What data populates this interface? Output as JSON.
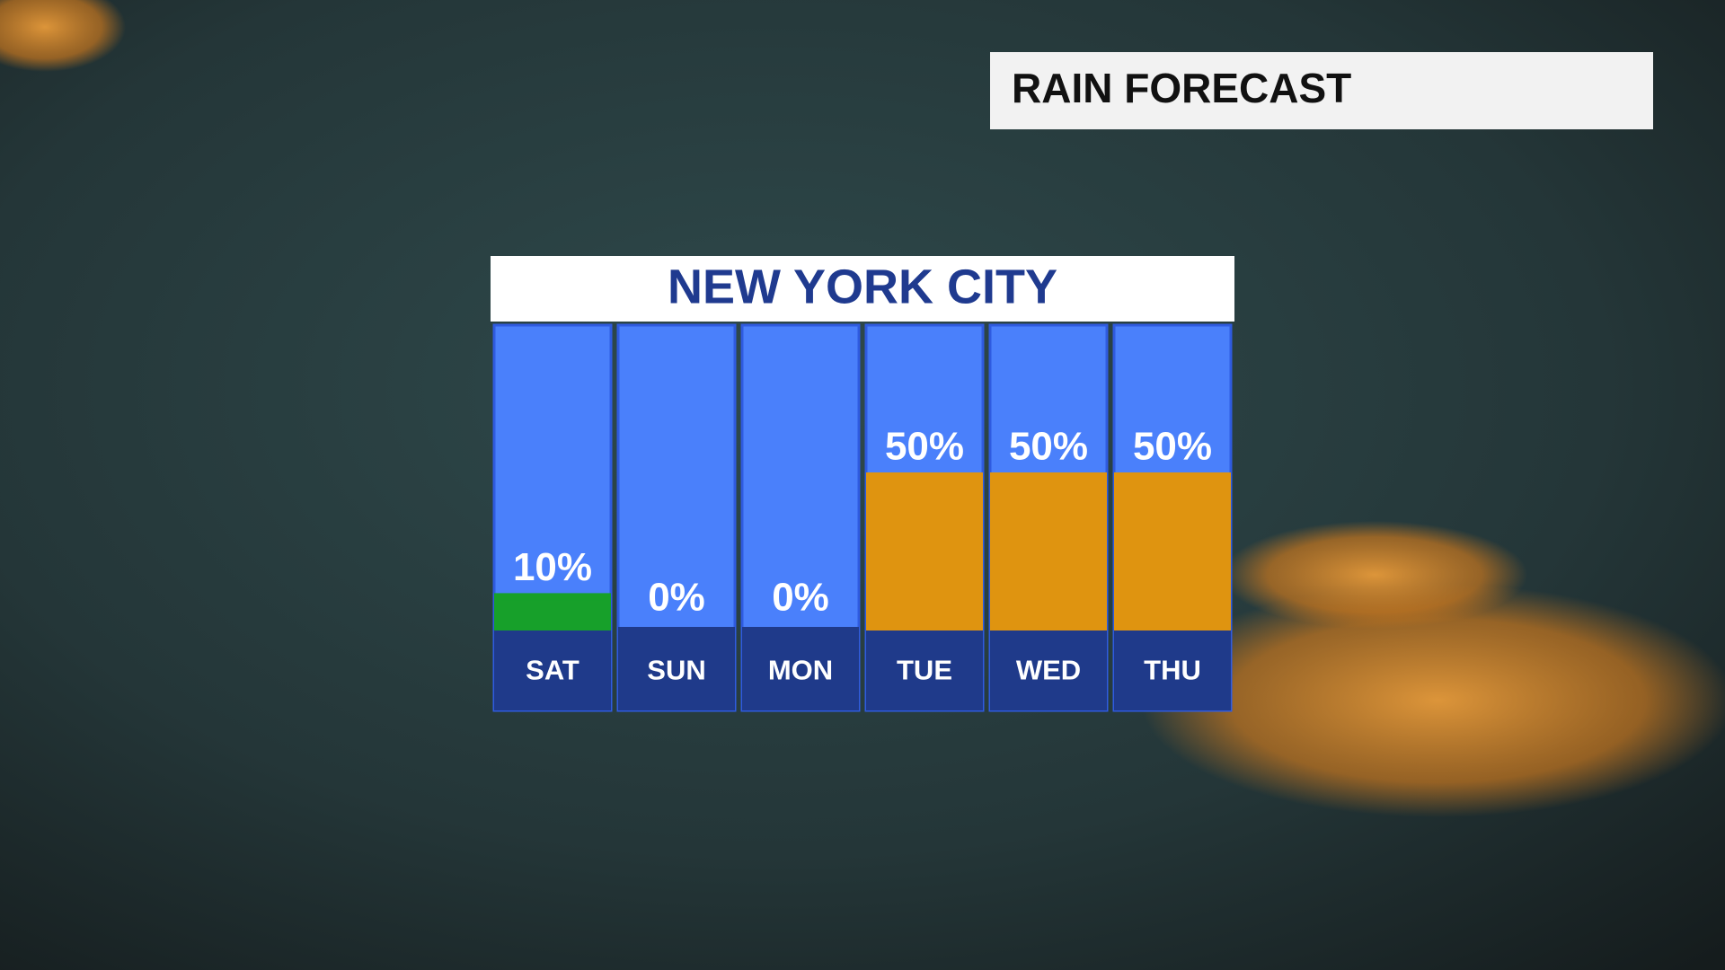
{
  "chart_data": {
    "type": "bar",
    "title": "RAIN FORECAST",
    "subtitle": "NEW YORK CITY",
    "categories": [
      "SAT",
      "SUN",
      "MON",
      "TUE",
      "WED",
      "THU"
    ],
    "values": [
      10,
      0,
      0,
      50,
      50,
      50
    ],
    "value_labels": [
      "10%",
      "0%",
      "0%",
      "50%",
      "50%",
      "50%"
    ],
    "colors": [
      "#17a02a",
      "#ffffff",
      "#ffffff",
      "#df9410",
      "#df9410",
      "#df9410"
    ],
    "ylim": [
      0,
      100
    ]
  }
}
